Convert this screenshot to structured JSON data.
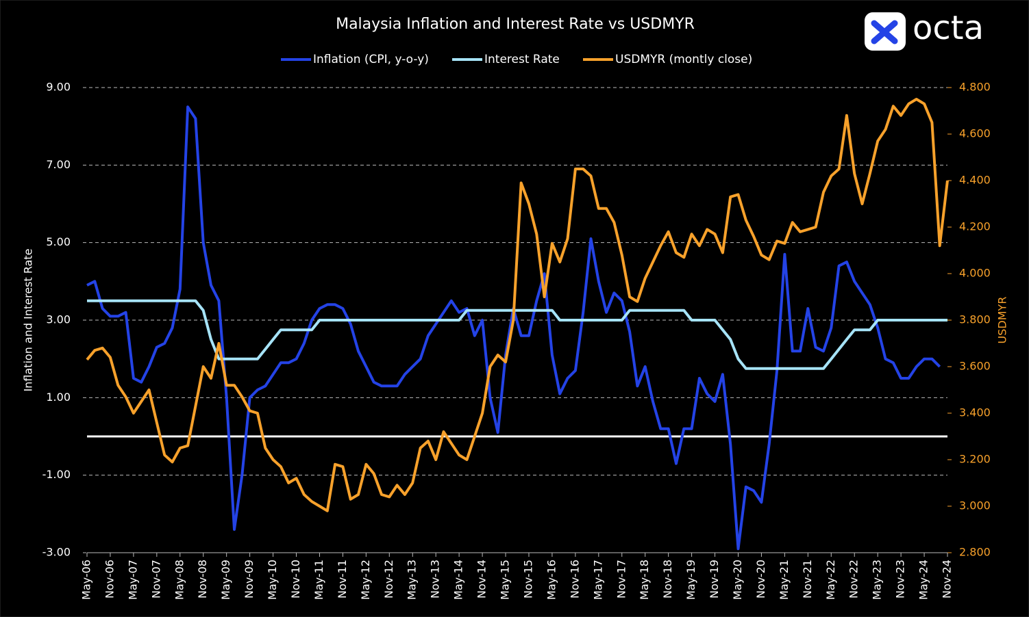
{
  "logo": "octa",
  "chart_data": {
    "type": "line",
    "title": "Malaysia Inflation and Interest Rate vs USDMYR",
    "y_label": "Inflation and Interest Rate",
    "y2_label": "USDMYR",
    "categories": [
      "May-06",
      null,
      null,
      "Nov-06",
      null,
      null,
      "May-07",
      null,
      null,
      "Nov-07",
      null,
      null,
      "May-08",
      null,
      null,
      "Nov-08",
      null,
      null,
      "May-09",
      null,
      null,
      "Nov-09",
      null,
      null,
      "May-10",
      null,
      null,
      "Nov-10",
      null,
      null,
      "May-11",
      null,
      null,
      "Nov-11",
      null,
      null,
      "May-12",
      null,
      null,
      "Nov-12",
      null,
      null,
      "May-13",
      null,
      null,
      "Nov-13",
      null,
      null,
      "May-14",
      null,
      null,
      "Nov-14",
      null,
      null,
      "May-15",
      null,
      null,
      "Nov-15",
      null,
      null,
      "May-16",
      null,
      null,
      "Nov-16",
      null,
      null,
      "May-17",
      null,
      null,
      "Nov-17",
      null,
      null,
      "May-18",
      null,
      null,
      "Nov-18",
      null,
      null,
      "May-19",
      null,
      null,
      "Nov-19",
      null,
      null,
      "May-20",
      null,
      null,
      "Nov-20",
      null,
      null,
      "May-21",
      null,
      null,
      "Nov-21",
      null,
      null,
      "May-22",
      null,
      null,
      "Nov-22",
      null,
      null,
      "May-23",
      null,
      null,
      "Nov-23",
      null,
      null,
      "May-24",
      null,
      null,
      "Nov-24"
    ],
    "series": [
      {
        "name": "Inflation (CPI, y-o-y)",
        "color": "#2443e6",
        "values": [
          3.9,
          4.0,
          3.3,
          3.1,
          3.1,
          3.2,
          1.5,
          1.4,
          1.8,
          2.3,
          2.4,
          2.8,
          3.8,
          8.5,
          8.2,
          5.0,
          3.9,
          3.5,
          1.0,
          -2.4,
          -1.0,
          1.0,
          1.2,
          1.3,
          1.6,
          1.9,
          1.9,
          2.0,
          2.4,
          3.0,
          3.3,
          3.4,
          3.4,
          3.3,
          2.9,
          2.2,
          1.8,
          1.4,
          1.3,
          1.3,
          1.3,
          1.6,
          1.8,
          2.0,
          2.6,
          2.9,
          3.2,
          3.5,
          3.2,
          3.3,
          2.6,
          3.0,
          1.0,
          0.1,
          2.1,
          3.3,
          2.6,
          2.6,
          3.5,
          4.2,
          2.1,
          1.1,
          1.5,
          1.7,
          3.2,
          5.1,
          4.0,
          3.2,
          3.7,
          3.5,
          2.7,
          1.3,
          1.8,
          0.9,
          0.2,
          0.2,
          -0.7,
          0.2,
          0.2,
          1.5,
          1.1,
          0.9,
          1.6,
          -0.2,
          -2.9,
          -1.3,
          -1.4,
          -1.7,
          -0.2,
          1.7,
          4.7,
          2.2,
          2.2,
          3.3,
          2.3,
          2.2,
          2.8,
          4.4,
          4.5,
          4.0,
          3.7,
          3.4,
          2.8,
          2.0,
          1.9,
          1.5,
          1.5,
          1.8,
          2.0,
          2.0,
          1.8,
          null
        ]
      },
      {
        "name": "Interest Rate",
        "color": "#a6e3f7",
        "values": [
          3.5,
          3.5,
          3.5,
          3.5,
          3.5,
          3.5,
          3.5,
          3.5,
          3.5,
          3.5,
          3.5,
          3.5,
          3.5,
          3.5,
          3.5,
          3.25,
          2.5,
          2.0,
          2.0,
          2.0,
          2.0,
          2.0,
          2.0,
          2.25,
          2.5,
          2.75,
          2.75,
          2.75,
          2.75,
          2.75,
          3.0,
          3.0,
          3.0,
          3.0,
          3.0,
          3.0,
          3.0,
          3.0,
          3.0,
          3.0,
          3.0,
          3.0,
          3.0,
          3.0,
          3.0,
          3.0,
          3.0,
          3.0,
          3.0,
          3.25,
          3.25,
          3.25,
          3.25,
          3.25,
          3.25,
          3.25,
          3.25,
          3.25,
          3.25,
          3.25,
          3.25,
          3.0,
          3.0,
          3.0,
          3.0,
          3.0,
          3.0,
          3.0,
          3.0,
          3.0,
          3.25,
          3.25,
          3.25,
          3.25,
          3.25,
          3.25,
          3.25,
          3.25,
          3.0,
          3.0,
          3.0,
          3.0,
          2.75,
          2.5,
          2.0,
          1.75,
          1.75,
          1.75,
          1.75,
          1.75,
          1.75,
          1.75,
          1.75,
          1.75,
          1.75,
          1.75,
          2.0,
          2.25,
          2.5,
          2.75,
          2.75,
          2.75,
          3.0,
          3.0,
          3.0,
          3.0,
          3.0,
          3.0,
          3.0,
          3.0,
          3.0,
          3.0
        ]
      },
      {
        "name": "USDMYR (montly close)",
        "color": "#f7a12b",
        "axis": "y2",
        "values": [
          3.63,
          3.67,
          3.68,
          3.64,
          3.52,
          3.47,
          3.4,
          3.45,
          3.5,
          3.36,
          3.22,
          3.19,
          3.25,
          3.26,
          3.43,
          3.6,
          3.55,
          3.7,
          3.52,
          3.52,
          3.47,
          3.41,
          3.4,
          3.25,
          3.2,
          3.17,
          3.1,
          3.12,
          3.05,
          3.02,
          3.0,
          2.98,
          3.18,
          3.17,
          3.03,
          3.05,
          3.18,
          3.14,
          3.05,
          3.04,
          3.09,
          3.05,
          3.1,
          3.25,
          3.28,
          3.2,
          3.32,
          3.27,
          3.22,
          3.2,
          3.3,
          3.4,
          3.6,
          3.65,
          3.62,
          3.8,
          4.39,
          4.3,
          4.17,
          3.9,
          4.13,
          4.05,
          4.15,
          4.45,
          4.45,
          4.42,
          4.28,
          4.28,
          4.22,
          4.08,
          3.9,
          3.88,
          3.98,
          4.05,
          4.12,
          4.18,
          4.09,
          4.07,
          4.17,
          4.12,
          4.19,
          4.17,
          4.09,
          4.33,
          4.34,
          4.23,
          4.16,
          4.08,
          4.06,
          4.14,
          4.13,
          4.22,
          4.18,
          4.19,
          4.2,
          4.35,
          4.42,
          4.45,
          4.68,
          4.43,
          4.3,
          4.43,
          4.57,
          4.62,
          4.72,
          4.68,
          4.73,
          4.75,
          4.73,
          4.65,
          4.12,
          4.4
        ]
      }
    ],
    "ylim": [
      -3,
      9
    ],
    "yticks": [
      {
        "value": -3,
        "label": "-3.00"
      },
      {
        "value": -1,
        "label": "-1.00"
      },
      {
        "value": 1,
        "label": "1.00"
      },
      {
        "value": 3,
        "label": "3.00"
      },
      {
        "value": 5,
        "label": "5.00"
      },
      {
        "value": 7,
        "label": "7.00"
      },
      {
        "value": 9,
        "label": "9.00"
      }
    ],
    "y2lim": [
      2.8,
      4.8
    ],
    "y2ticks": [
      {
        "value": 2.8,
        "label": "2.800"
      },
      {
        "value": 3,
        "label": "3.000"
      },
      {
        "value": 3.2,
        "label": "3.200"
      },
      {
        "value": 3.4,
        "label": "3.400"
      },
      {
        "value": 3.6,
        "label": "3.600"
      },
      {
        "value": 3.8,
        "label": "3.800"
      },
      {
        "value": 4,
        "label": "4.000"
      },
      {
        "value": 4.2,
        "label": "4.200"
      },
      {
        "value": 4.4,
        "label": "4.400"
      },
      {
        "value": 4.6,
        "label": "4.600"
      },
      {
        "value": 4.8,
        "label": "4.800"
      }
    ],
    "grid": true,
    "legend": "top"
  }
}
